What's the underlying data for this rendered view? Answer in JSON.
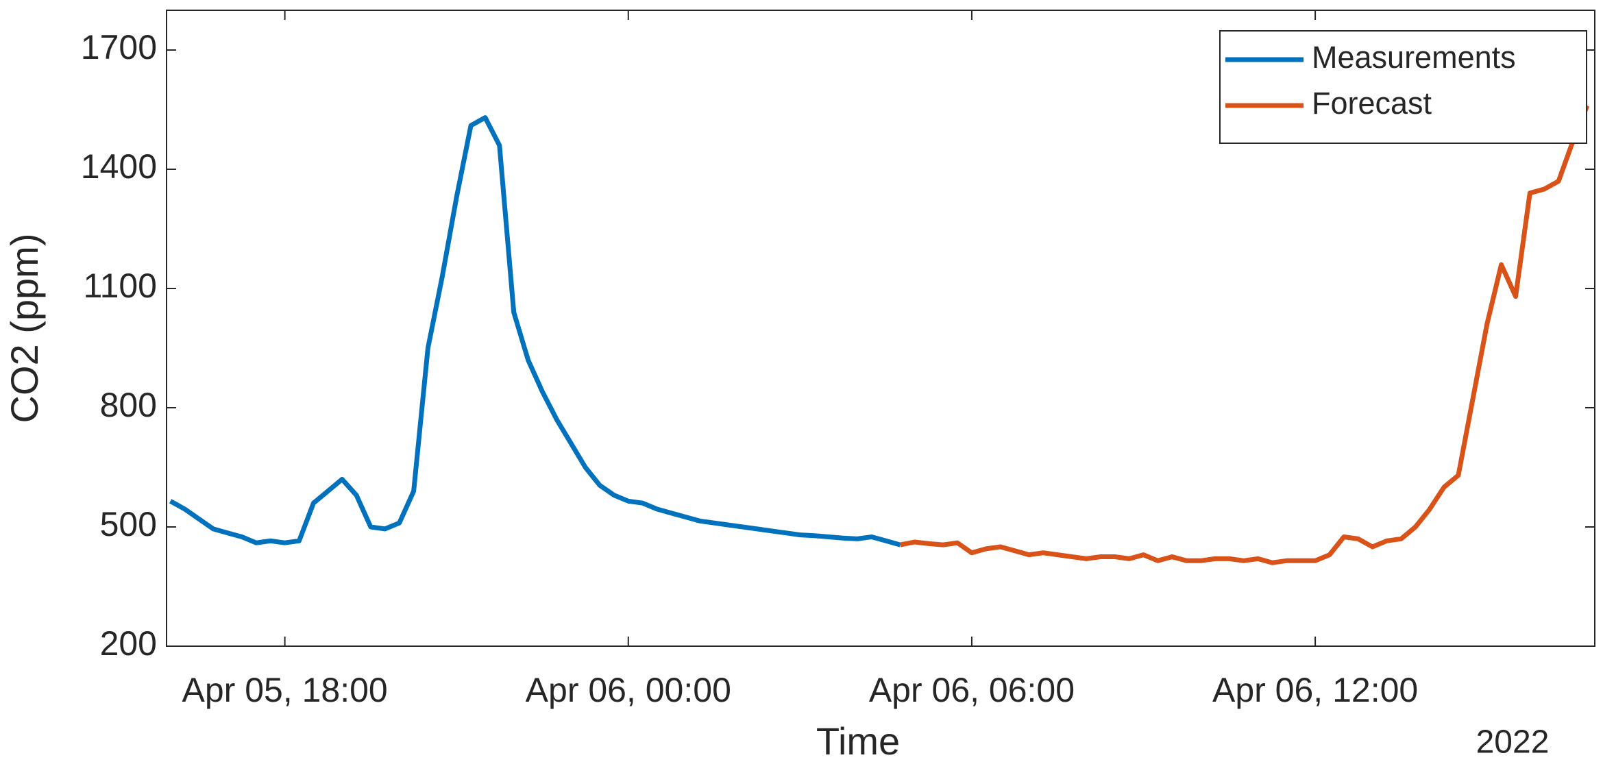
{
  "chart_data": {
    "type": "line",
    "x_label": "Time",
    "y_label": "CO2 (ppm)",
    "x_secondary_label": "2022",
    "xlim": [
      "2022-04-05 15:56",
      "2022-04-06 16:53"
    ],
    "xticks": [
      {
        "value": "2022-04-05 18:00",
        "label": "Apr 05, 18:00"
      },
      {
        "value": "2022-04-06 00:00",
        "label": "Apr 06, 00:00"
      },
      {
        "value": "2022-04-06 06:00",
        "label": "Apr 06, 06:00"
      },
      {
        "value": "2022-04-06 12:00",
        "label": "Apr 06, 12:00"
      }
    ],
    "ylim": [
      200,
      1800
    ],
    "yticks": [
      200,
      500,
      800,
      1100,
      1400,
      1700
    ],
    "legend": "top-right",
    "series": [
      {
        "name": "Measurements",
        "color": "#0072BD",
        "x": [
          "2022-04-05 16:00",
          "2022-04-05 16:15",
          "2022-04-05 16:30",
          "2022-04-05 16:45",
          "2022-04-05 17:00",
          "2022-04-05 17:15",
          "2022-04-05 17:30",
          "2022-04-05 17:45",
          "2022-04-05 18:00",
          "2022-04-05 18:15",
          "2022-04-05 18:30",
          "2022-04-05 18:45",
          "2022-04-05 19:00",
          "2022-04-05 19:15",
          "2022-04-05 19:30",
          "2022-04-05 19:45",
          "2022-04-05 20:00",
          "2022-04-05 20:15",
          "2022-04-05 20:30",
          "2022-04-05 20:45",
          "2022-04-05 21:00",
          "2022-04-05 21:15",
          "2022-04-05 21:30",
          "2022-04-05 21:45",
          "2022-04-05 22:00",
          "2022-04-05 22:15",
          "2022-04-05 22:30",
          "2022-04-05 22:45",
          "2022-04-05 23:00",
          "2022-04-05 23:15",
          "2022-04-05 23:30",
          "2022-04-05 23:45",
          "2022-04-06 00:00",
          "2022-04-06 00:15",
          "2022-04-06 00:30",
          "2022-04-06 00:45",
          "2022-04-06 01:00",
          "2022-04-06 01:15",
          "2022-04-06 01:30",
          "2022-04-06 01:45",
          "2022-04-06 02:00",
          "2022-04-06 02:15",
          "2022-04-06 02:30",
          "2022-04-06 02:45",
          "2022-04-06 03:00",
          "2022-04-06 03:15",
          "2022-04-06 03:30",
          "2022-04-06 03:45",
          "2022-04-06 04:00",
          "2022-04-06 04:15",
          "2022-04-06 04:30",
          "2022-04-06 04:45"
        ],
        "values": [
          565,
          545,
          520,
          495,
          485,
          475,
          460,
          465,
          460,
          465,
          560,
          590,
          620,
          580,
          500,
          495,
          510,
          590,
          950,
          1130,
          1330,
          1510,
          1530,
          1460,
          1040,
          920,
          840,
          770,
          710,
          650,
          605,
          580,
          565,
          560,
          545,
          535,
          525,
          515,
          510,
          505,
          500,
          495,
          490,
          485,
          480,
          478,
          475,
          472,
          470,
          475,
          465,
          455
        ]
      },
      {
        "name": "Forecast",
        "color": "#D95319",
        "x": [
          "2022-04-06 04:45",
          "2022-04-06 05:00",
          "2022-04-06 05:15",
          "2022-04-06 05:30",
          "2022-04-06 05:45",
          "2022-04-06 06:00",
          "2022-04-06 06:15",
          "2022-04-06 06:30",
          "2022-04-06 06:45",
          "2022-04-06 07:00",
          "2022-04-06 07:15",
          "2022-04-06 07:30",
          "2022-04-06 07:45",
          "2022-04-06 08:00",
          "2022-04-06 08:15",
          "2022-04-06 08:30",
          "2022-04-06 08:45",
          "2022-04-06 09:00",
          "2022-04-06 09:15",
          "2022-04-06 09:30",
          "2022-04-06 09:45",
          "2022-04-06 10:00",
          "2022-04-06 10:15",
          "2022-04-06 10:30",
          "2022-04-06 10:45",
          "2022-04-06 11:00",
          "2022-04-06 11:15",
          "2022-04-06 11:30",
          "2022-04-06 11:45",
          "2022-04-06 12:00",
          "2022-04-06 12:15",
          "2022-04-06 12:30",
          "2022-04-06 12:45",
          "2022-04-06 13:00",
          "2022-04-06 13:15",
          "2022-04-06 13:30",
          "2022-04-06 13:45",
          "2022-04-06 14:00",
          "2022-04-06 14:15",
          "2022-04-06 14:30",
          "2022-04-06 14:45",
          "2022-04-06 15:00",
          "2022-04-06 15:15",
          "2022-04-06 15:30",
          "2022-04-06 15:45",
          "2022-04-06 16:00",
          "2022-04-06 16:15",
          "2022-04-06 16:30",
          "2022-04-06 16:45"
        ],
        "values": [
          455,
          462,
          458,
          455,
          460,
          435,
          445,
          450,
          440,
          430,
          435,
          430,
          425,
          420,
          425,
          425,
          420,
          430,
          415,
          425,
          415,
          415,
          420,
          420,
          415,
          420,
          410,
          415,
          415,
          415,
          430,
          475,
          470,
          450,
          465,
          470,
          500,
          545,
          600,
          630,
          820,
          1010,
          1160,
          1080,
          1340,
          1350,
          1370,
          1470,
          1560
        ]
      }
    ]
  }
}
